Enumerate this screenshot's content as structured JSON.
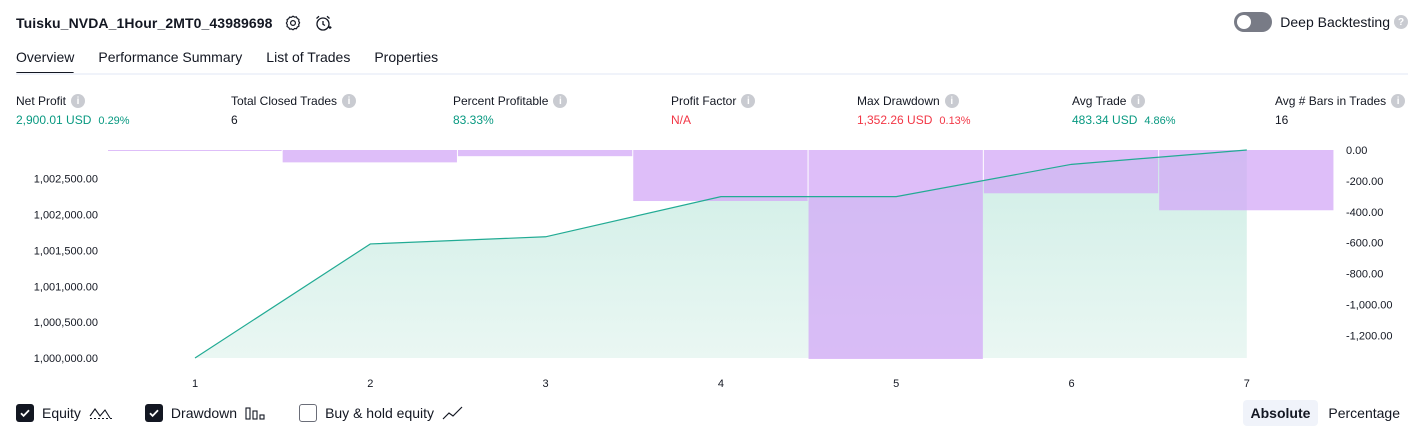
{
  "header": {
    "strategy_name": "Tuisku_NVDA_1Hour_2MT0_43989698",
    "icons": [
      "settings-icon",
      "add-alert-icon"
    ]
  },
  "deep_backtesting": {
    "label": "Deep Backtesting",
    "enabled": false,
    "help": "?"
  },
  "tabs": [
    "Overview",
    "Performance Summary",
    "List of Trades",
    "Properties"
  ],
  "active_tab": "Overview",
  "metrics": [
    {
      "label": "Net Profit",
      "value": "2,900.01 USD",
      "pct": "0.29%",
      "tone": "pos"
    },
    {
      "label": "Total Closed Trades",
      "value": "6",
      "pct": "",
      "tone": "neu"
    },
    {
      "label": "Percent Profitable",
      "value": "83.33%",
      "pct": "",
      "tone": "pos"
    },
    {
      "label": "Profit Factor",
      "value": "N/A",
      "pct": "",
      "tone": "neg"
    },
    {
      "label": "Max Drawdown",
      "value": "1,352.26 USD",
      "pct": "0.13%",
      "tone": "neg"
    },
    {
      "label": "Avg Trade",
      "value": "483.34 USD",
      "pct": "4.86%",
      "tone": "pos"
    },
    {
      "label": "Avg # Bars in Trades",
      "value": "16",
      "pct": "",
      "tone": "neu"
    }
  ],
  "chart_data": {
    "type": "line",
    "x": [
      1,
      2,
      3,
      4,
      5,
      6,
      7
    ],
    "series": [
      {
        "name": "Equity",
        "axis": "left",
        "style": "area-line",
        "values": [
          1000000,
          1001590,
          1001690,
          1002250,
          1002250,
          1002700,
          1002900
        ]
      },
      {
        "name": "Drawdown",
        "axis": "right",
        "style": "bars",
        "values": [
          0,
          -80,
          -40,
          -330,
          -1352.26,
          -280,
          -390
        ]
      }
    ],
    "left_axis": {
      "ticks": [
        "1,000,000.00",
        "1,000,500.00",
        "1,001,000.00",
        "1,001,500.00",
        "1,002,000.00",
        "1,002,500.00"
      ],
      "ylim": [
        1000000,
        1002900
      ]
    },
    "right_axis": {
      "ticks": [
        "0.00",
        "-200.00",
        "-400.00",
        "-600.00",
        "-800.00",
        "-1,000.00",
        "-1,200.00"
      ],
      "ylim": [
        -1352.26,
        0
      ]
    },
    "x_ticks": [
      "1",
      "2",
      "3",
      "4",
      "5",
      "6",
      "7"
    ],
    "colors": {
      "equity_line": "#22ab94",
      "equity_fill": "#cfeee6",
      "drawdown_bar": "#d3a8f7"
    },
    "grid": false
  },
  "legend": [
    {
      "label": "Equity",
      "checked": true,
      "icon": "equity-wave-icon"
    },
    {
      "label": "Drawdown",
      "checked": true,
      "icon": "drawdown-bars-icon"
    },
    {
      "label": "Buy & hold equity",
      "checked": false,
      "icon": "buy-hold-line-icon"
    }
  ],
  "mode": {
    "options": [
      "Absolute",
      "Percentage"
    ],
    "active": "Absolute"
  }
}
